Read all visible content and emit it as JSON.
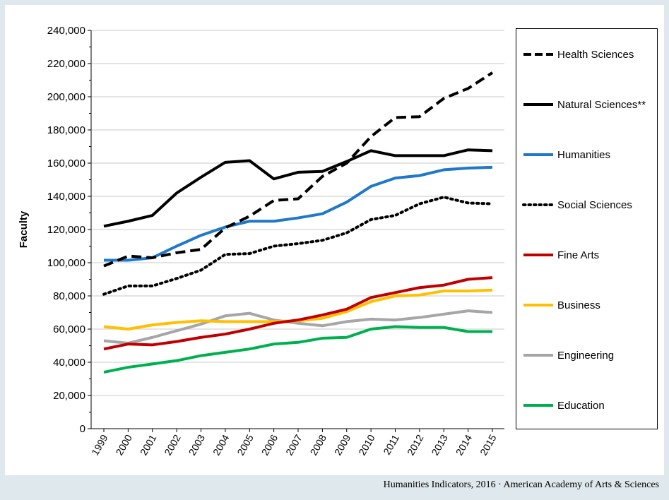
{
  "chart_data": {
    "type": "line",
    "ylabel": "Faculty",
    "xlabel": "",
    "ylim": [
      0,
      240000
    ],
    "yticks": [
      "0",
      "20,000",
      "40,000",
      "60,000",
      "80,000",
      "100,000",
      "120,000",
      "140,000",
      "160,000",
      "180,000",
      "200,000",
      "220,000",
      "240,000"
    ],
    "grid": "horizontal",
    "legend_position": "right",
    "x": [
      "1999",
      "2000",
      "2001",
      "2002",
      "2003",
      "2004",
      "2005",
      "2006",
      "2007",
      "2008",
      "2009",
      "2010",
      "2011",
      "2012",
      "2013",
      "2014",
      "2015"
    ],
    "series": [
      {
        "name": "Health Sciences",
        "color": "#000000",
        "style": "dashed",
        "values": [
          98000,
          104000,
          103000,
          106000,
          108000,
          121000,
          128000,
          137500,
          138500,
          152000,
          160000,
          176000,
          187500,
          188000,
          199000,
          205000,
          214500
        ]
      },
      {
        "name": "Natural Sciences**",
        "color": "#000000",
        "style": "solid",
        "values": [
          122000,
          125000,
          128500,
          142000,
          151500,
          160500,
          161500,
          150500,
          154500,
          155000,
          161000,
          167500,
          164500,
          164500,
          164500,
          168000,
          167500
        ]
      },
      {
        "name": "Humanities",
        "color": "#1f78c8",
        "style": "solid",
        "values": [
          101500,
          101500,
          103000,
          110000,
          116500,
          121500,
          125000,
          125000,
          127000,
          129500,
          136500,
          146000,
          151000,
          152500,
          156000,
          157000,
          157500
        ]
      },
      {
        "name": "Social Sciences",
        "color": "#000000",
        "style": "dotted",
        "values": [
          81000,
          86000,
          86000,
          90500,
          95500,
          105000,
          105500,
          110000,
          111500,
          113500,
          118000,
          126000,
          128500,
          135500,
          139500,
          136000,
          135500
        ]
      },
      {
        "name": "Fine Arts",
        "color": "#c00000",
        "style": "solid",
        "values": [
          48000,
          51000,
          50500,
          52500,
          55000,
          57000,
          60000,
          63500,
          65500,
          68500,
          72000,
          79000,
          82000,
          85000,
          86500,
          90000,
          91000
        ]
      },
      {
        "name": "Business",
        "color": "#ffc000",
        "style": "solid",
        "values": [
          61500,
          60000,
          62500,
          64000,
          65000,
          64500,
          64500,
          64500,
          65000,
          66500,
          70500,
          76500,
          80000,
          80500,
          83000,
          83000,
          83500
        ]
      },
      {
        "name": "Engineering",
        "color": "#a6a6a6",
        "style": "solid",
        "values": [
          53000,
          51500,
          55000,
          59000,
          63000,
          68000,
          69500,
          65500,
          63500,
          62000,
          64500,
          66000,
          65500,
          67000,
          69000,
          71000,
          70000
        ]
      },
      {
        "name": "Education",
        "color": "#00b050",
        "style": "solid",
        "values": [
          34000,
          37000,
          39000,
          41000,
          44000,
          46000,
          48000,
          51000,
          52000,
          54500,
          55000,
          60000,
          61500,
          61000,
          61000,
          58500,
          58500
        ]
      }
    ]
  },
  "source_credit": "Humanities Indicators, 2016 · American Academy of Arts & Sciences"
}
